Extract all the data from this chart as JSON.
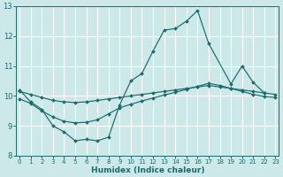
{
  "xlabel": "Humidex (Indice chaleur)",
  "background_color": "#cce8e8",
  "grid_color": "#b8d8d8",
  "line_color": "#1a6b6b",
  "xlim": [
    -0.3,
    23.3
  ],
  "ylim": [
    8,
    13
  ],
  "yticks": [
    8,
    9,
    10,
    11,
    12,
    13
  ],
  "xticks": [
    0,
    1,
    2,
    3,
    4,
    5,
    6,
    7,
    8,
    9,
    10,
    11,
    12,
    13,
    14,
    15,
    16,
    17,
    18,
    19,
    20,
    21,
    22,
    23
  ],
  "line1_x": [
    0,
    1,
    2,
    3,
    4,
    5,
    6,
    7,
    8,
    9,
    10,
    11,
    12,
    13,
    14,
    15,
    16,
    17,
    19,
    20,
    21,
    22
  ],
  "line1_y": [
    10.2,
    9.8,
    9.55,
    9.0,
    8.8,
    8.5,
    8.55,
    8.5,
    8.62,
    9.7,
    10.5,
    10.75,
    11.5,
    12.2,
    12.25,
    12.5,
    12.85,
    11.75,
    10.4,
    11.0,
    10.45,
    10.1
  ],
  "line2_x": [
    0,
    1,
    2,
    3,
    4,
    5,
    6,
    7,
    8,
    9,
    10,
    11,
    12,
    13,
    14,
    15,
    16,
    17,
    18,
    19,
    20,
    21,
    22,
    23
  ],
  "line2_y": [
    10.15,
    10.05,
    9.95,
    9.85,
    9.8,
    9.78,
    9.8,
    9.85,
    9.9,
    9.95,
    10.0,
    10.05,
    10.1,
    10.15,
    10.2,
    10.25,
    10.3,
    10.35,
    10.3,
    10.25,
    10.2,
    10.15,
    10.1,
    10.05
  ],
  "line3_x": [
    0,
    1,
    2,
    3,
    4,
    5,
    6,
    7,
    8,
    9,
    10,
    11,
    12,
    13,
    14,
    15,
    16,
    17,
    18,
    19,
    20,
    21,
    22,
    23
  ],
  "line3_y": [
    9.9,
    9.75,
    9.5,
    9.3,
    9.15,
    9.1,
    9.12,
    9.2,
    9.4,
    9.6,
    9.72,
    9.83,
    9.93,
    10.03,
    10.12,
    10.22,
    10.32,
    10.42,
    10.35,
    10.25,
    10.15,
    10.05,
    9.98,
    9.95
  ]
}
